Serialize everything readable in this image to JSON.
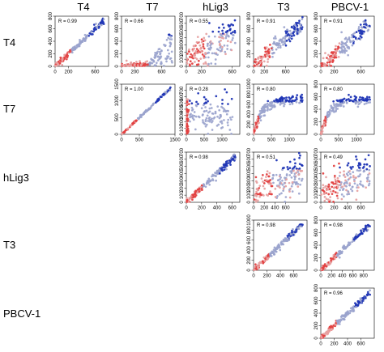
{
  "chart_data": {
    "type": "scatter",
    "column_labels": [
      "T4",
      "T7",
      "hLig3",
      "T3",
      "PBCV-1"
    ],
    "row_labels": [
      "T4",
      "T7",
      "hLig3",
      "T3",
      "PBCV-1"
    ],
    "colors": {
      "grey": "#9aa3cd",
      "red": "#e34040",
      "blue": "#1f35b5",
      "pink": "#e7a1a1"
    },
    "panels": [
      {
        "row": 0,
        "col": 0,
        "r_label": "R = 0.99",
        "xlim": [
          0,
          800
        ],
        "ylim": [
          0,
          800
        ],
        "xticks": [
          0,
          200,
          600
        ],
        "xtick_labels": [
          "0",
          "200",
          "600"
        ],
        "yticks": [
          0,
          200,
          400,
          600,
          800
        ],
        "ytick_labels": [
          "0",
          "200",
          "400",
          "600",
          "800"
        ],
        "pattern": "tight"
      },
      {
        "row": 0,
        "col": 1,
        "r_label": "R = 0.66",
        "xlim": [
          0,
          800
        ],
        "ylim": [
          0,
          800
        ],
        "xticks": [
          0,
          200,
          600
        ],
        "xtick_labels": [
          "0",
          "200",
          "600"
        ],
        "yticks": [
          0,
          200,
          400,
          600,
          800
        ],
        "ytick_labels": [
          "0",
          "200",
          "400",
          "600",
          "800"
        ],
        "pattern": "hockey"
      },
      {
        "row": 0,
        "col": 2,
        "r_label": "R = 0.55",
        "xlim": [
          0,
          700
        ],
        "ylim": [
          0,
          700
        ],
        "xticks": [
          0,
          200,
          600
        ],
        "xtick_labels": [
          "0",
          "200",
          "600"
        ],
        "yticks": [
          0,
          100,
          200,
          300,
          400,
          500,
          600,
          700
        ],
        "ytick_labels": [
          "0",
          "100",
          "200",
          "300",
          "400",
          "500",
          "600",
          "700"
        ],
        "pattern": "cloud"
      },
      {
        "row": 0,
        "col": 3,
        "r_label": "R = 0.91",
        "xlim": [
          0,
          1000
        ],
        "ylim": [
          0,
          800
        ],
        "xticks": [
          0,
          200,
          600
        ],
        "xtick_labels": [
          "0",
          "200",
          "600"
        ],
        "yticks": [
          0,
          200,
          400,
          600,
          800
        ],
        "ytick_labels": [
          "0",
          "200",
          "400",
          "600",
          "800"
        ],
        "pattern": "mid"
      },
      {
        "row": 0,
        "col": 4,
        "r_label": "R = 0.91",
        "xlim": [
          0,
          800
        ],
        "ylim": [
          0,
          800
        ],
        "xticks": [
          0,
          200,
          600
        ],
        "xtick_labels": [
          "0",
          "200",
          "600"
        ],
        "yticks": [
          0,
          200,
          400,
          600,
          800
        ],
        "ytick_labels": [
          "0",
          "200",
          "400",
          "600",
          "800"
        ],
        "pattern": "mid"
      },
      {
        "row": 1,
        "col": 1,
        "r_label": "R = 1.00",
        "xlim": [
          0,
          1500
        ],
        "ylim": [
          0,
          1500
        ],
        "xticks": [
          0,
          500,
          1500
        ],
        "xtick_labels": [
          "0",
          "500",
          "1500"
        ],
        "yticks": [
          0,
          500,
          1000,
          1500
        ],
        "ytick_labels": [
          "0",
          "500",
          "1000",
          "1500"
        ],
        "pattern": "identity"
      },
      {
        "row": 1,
        "col": 2,
        "r_label": "R = 0.28",
        "xlim": [
          0,
          1500
        ],
        "ylim": [
          0,
          800
        ],
        "xticks": [
          0,
          500,
          1000
        ],
        "xtick_labels": [
          "0",
          "500",
          "1000"
        ],
        "yticks": [
          0,
          100,
          200,
          300,
          400,
          500,
          600,
          700
        ],
        "ytick_labels": [
          "0",
          "100",
          "200",
          "300",
          "400",
          "500",
          "600",
          "700"
        ],
        "pattern": "wall"
      },
      {
        "row": 1,
        "col": 3,
        "r_label": "R = 0.80",
        "xlim": [
          0,
          1500
        ],
        "ylim": [
          0,
          1000
        ],
        "xticks": [
          0,
          500,
          1000
        ],
        "xtick_labels": [
          "0",
          "500",
          "1000"
        ],
        "yticks": [
          0,
          200,
          400,
          600,
          800,
          1000
        ],
        "ytick_labels": [
          "0",
          "200",
          "400",
          "600",
          "800",
          "1000"
        ],
        "pattern": "saturating"
      },
      {
        "row": 1,
        "col": 4,
        "r_label": "R = 0.80",
        "xlim": [
          0,
          1500
        ],
        "ylim": [
          0,
          800
        ],
        "xticks": [
          0,
          500,
          1000
        ],
        "xtick_labels": [
          "0",
          "500",
          "1000"
        ],
        "yticks": [
          0,
          200,
          400,
          600,
          800
        ],
        "ytick_labels": [
          "0",
          "200",
          "400",
          "600",
          "800"
        ],
        "pattern": "saturating"
      },
      {
        "row": 2,
        "col": 2,
        "r_label": "R = 0.98",
        "xlim": [
          0,
          700
        ],
        "ylim": [
          0,
          700
        ],
        "xticks": [
          0,
          200,
          400,
          600
        ],
        "xtick_labels": [
          "0",
          "200",
          "400",
          "600"
        ],
        "yticks": [
          0,
          100,
          200,
          300,
          400,
          500,
          600,
          700
        ],
        "ytick_labels": [
          "0",
          "100",
          "200",
          "300",
          "400",
          "500",
          "600",
          "700"
        ],
        "pattern": "tight"
      },
      {
        "row": 2,
        "col": 3,
        "r_label": "R = 0.51",
        "xlim": [
          0,
          1000
        ],
        "ylim": [
          0,
          700
        ],
        "xticks": [
          0,
          200,
          400,
          600
        ],
        "xtick_labels": [
          "0",
          "200",
          "400",
          "600"
        ],
        "yticks": [
          0,
          100,
          200,
          300,
          400,
          500,
          600,
          700
        ],
        "ytick_labels": [
          "0",
          "100",
          "200",
          "300",
          "400",
          "500",
          "600",
          "700"
        ],
        "pattern": "cloud"
      },
      {
        "row": 2,
        "col": 4,
        "r_label": "R = 0.49",
        "xlim": [
          0,
          800
        ],
        "ylim": [
          0,
          700
        ],
        "xticks": [
          0,
          200,
          400,
          600
        ],
        "xtick_labels": [
          "0",
          "200",
          "400",
          "600"
        ],
        "yticks": [
          0,
          100,
          200,
          300,
          400,
          500,
          600,
          700
        ],
        "ytick_labels": [
          "0",
          "100",
          "200",
          "300",
          "400",
          "500",
          "600",
          "700"
        ],
        "pattern": "cloud"
      },
      {
        "row": 3,
        "col": 3,
        "r_label": "R = 0.98",
        "xlim": [
          0,
          800
        ],
        "ylim": [
          0,
          1000
        ],
        "xticks": [
          0,
          200,
          400,
          600
        ],
        "xtick_labels": [
          "0",
          "200",
          "400",
          "600"
        ],
        "yticks": [
          0,
          200,
          400,
          600,
          800,
          1000
        ],
        "ytick_labels": [
          "0",
          "200",
          "400",
          "600",
          "800",
          "1000"
        ],
        "pattern": "tight"
      },
      {
        "row": 3,
        "col": 4,
        "r_label": "R = 0.98",
        "xlim": [
          0,
          1000
        ],
        "ylim": [
          0,
          800
        ],
        "xticks": [
          0,
          200,
          400,
          600,
          800
        ],
        "xtick_labels": [
          "0",
          "200",
          "400",
          "600",
          "800"
        ],
        "yticks": [
          0,
          200,
          400,
          600,
          800
        ],
        "ytick_labels": [
          "0",
          "200",
          "400",
          "600",
          "800"
        ],
        "pattern": "tight"
      },
      {
        "row": 4,
        "col": 4,
        "r_label": "R = 0.96",
        "xlim": [
          0,
          800
        ],
        "ylim": [
          0,
          800
        ],
        "xticks": [
          0,
          200,
          400,
          600
        ],
        "xtick_labels": [
          "0",
          "200",
          "400",
          "600"
        ],
        "yticks": [
          0,
          200,
          400,
          600,
          800
        ],
        "ytick_labels": [
          "0",
          "200",
          "400",
          "600",
          "800"
        ],
        "pattern": "tight"
      }
    ]
  }
}
